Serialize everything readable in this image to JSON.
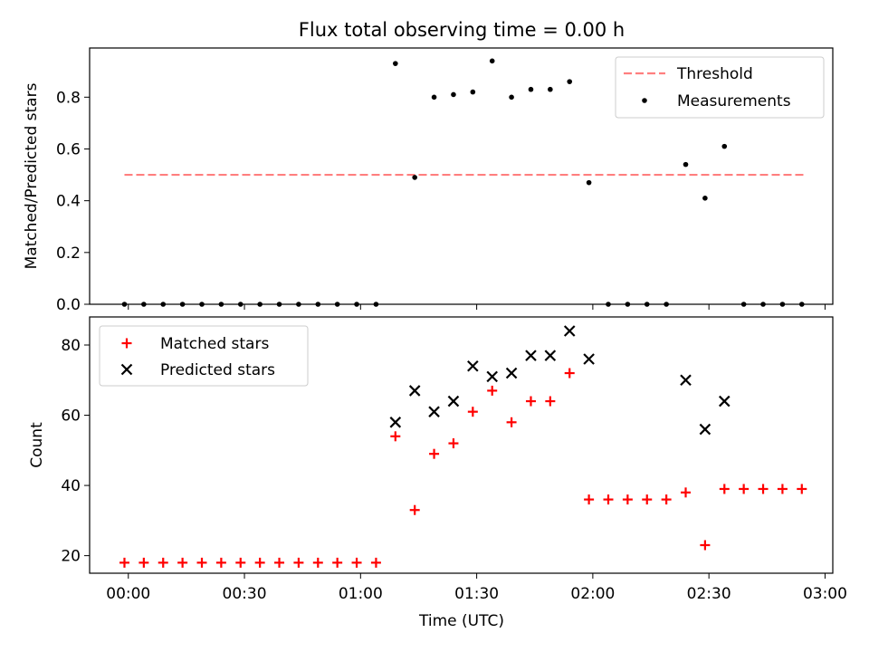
{
  "title": "Flux total observing time = 0.00 h",
  "xaxis": {
    "label": "Time (UTC)",
    "tick_labels": [
      "00:00",
      "00:30",
      "01:00",
      "01:30",
      "02:00",
      "02:30",
      "03:00"
    ],
    "tick_minutes": [
      0,
      30,
      60,
      90,
      120,
      150,
      180
    ],
    "range_minutes": [
      -10,
      182
    ]
  },
  "chart_data": [
    {
      "type": "scatter",
      "name": "ratio-panel",
      "ylabel": "Matched/Predicted stars",
      "ylim": [
        0,
        0.99
      ],
      "yticks": [
        0.0,
        0.2,
        0.4,
        0.6,
        0.8
      ],
      "ytick_labels": [
        "0.0",
        "0.2",
        "0.4",
        "0.6",
        "0.8"
      ],
      "legend_position": "upper right",
      "threshold": {
        "name": "Threshold",
        "y": 0.5,
        "x_range": [
          -1,
          175
        ],
        "color": "#ff7f7f"
      },
      "series": [
        {
          "name": "Measurements",
          "color": "#000000",
          "x": [
            -1,
            4,
            9,
            14,
            19,
            24,
            29,
            34,
            39,
            44,
            49,
            54,
            59,
            64,
            69,
            74,
            79,
            84,
            89,
            94,
            99,
            104,
            109,
            114,
            119,
            124,
            129,
            134,
            139,
            144,
            149,
            154,
            159,
            164,
            169,
            174
          ],
          "y": [
            0,
            0,
            0,
            0,
            0,
            0,
            0,
            0,
            0,
            0,
            0,
            0,
            0,
            0,
            0.93,
            0.49,
            0.8,
            0.81,
            0.82,
            0.94,
            0.8,
            0.83,
            0.83,
            0.86,
            0.47,
            0,
            0,
            0,
            0,
            0.54,
            0.41,
            0.61,
            0,
            0,
            0,
            0
          ]
        }
      ]
    },
    {
      "type": "scatter",
      "name": "count-panel",
      "ylabel": "Count",
      "ylim": [
        15,
        88
      ],
      "yticks": [
        20,
        40,
        60,
        80
      ],
      "ytick_labels": [
        "20",
        "40",
        "60",
        "80"
      ],
      "legend_position": "upper left",
      "series": [
        {
          "name": "Matched stars",
          "marker": "plus",
          "color": "#ff0000",
          "x": [
            -1,
            4,
            9,
            14,
            19,
            24,
            29,
            34,
            39,
            44,
            49,
            54,
            59,
            64,
            69,
            74,
            79,
            84,
            89,
            94,
            99,
            104,
            109,
            114,
            119,
            124,
            129,
            134,
            139,
            144,
            149,
            154,
            159,
            164,
            169,
            174
          ],
          "y": [
            18,
            18,
            18,
            18,
            18,
            18,
            18,
            18,
            18,
            18,
            18,
            18,
            18,
            18,
            54,
            33,
            49,
            52,
            61,
            67,
            58,
            64,
            64,
            72,
            36,
            36,
            36,
            36,
            36,
            38,
            23,
            39,
            39,
            39,
            39,
            39
          ]
        },
        {
          "name": "Predicted stars",
          "marker": "x",
          "color": "#000000",
          "x": [
            69,
            74,
            79,
            84,
            89,
            94,
            99,
            104,
            109,
            114,
            119,
            144,
            149,
            154
          ],
          "y": [
            58,
            67,
            61,
            64,
            74,
            71,
            72,
            77,
            77,
            84,
            76,
            70,
            56,
            64
          ]
        }
      ]
    }
  ]
}
